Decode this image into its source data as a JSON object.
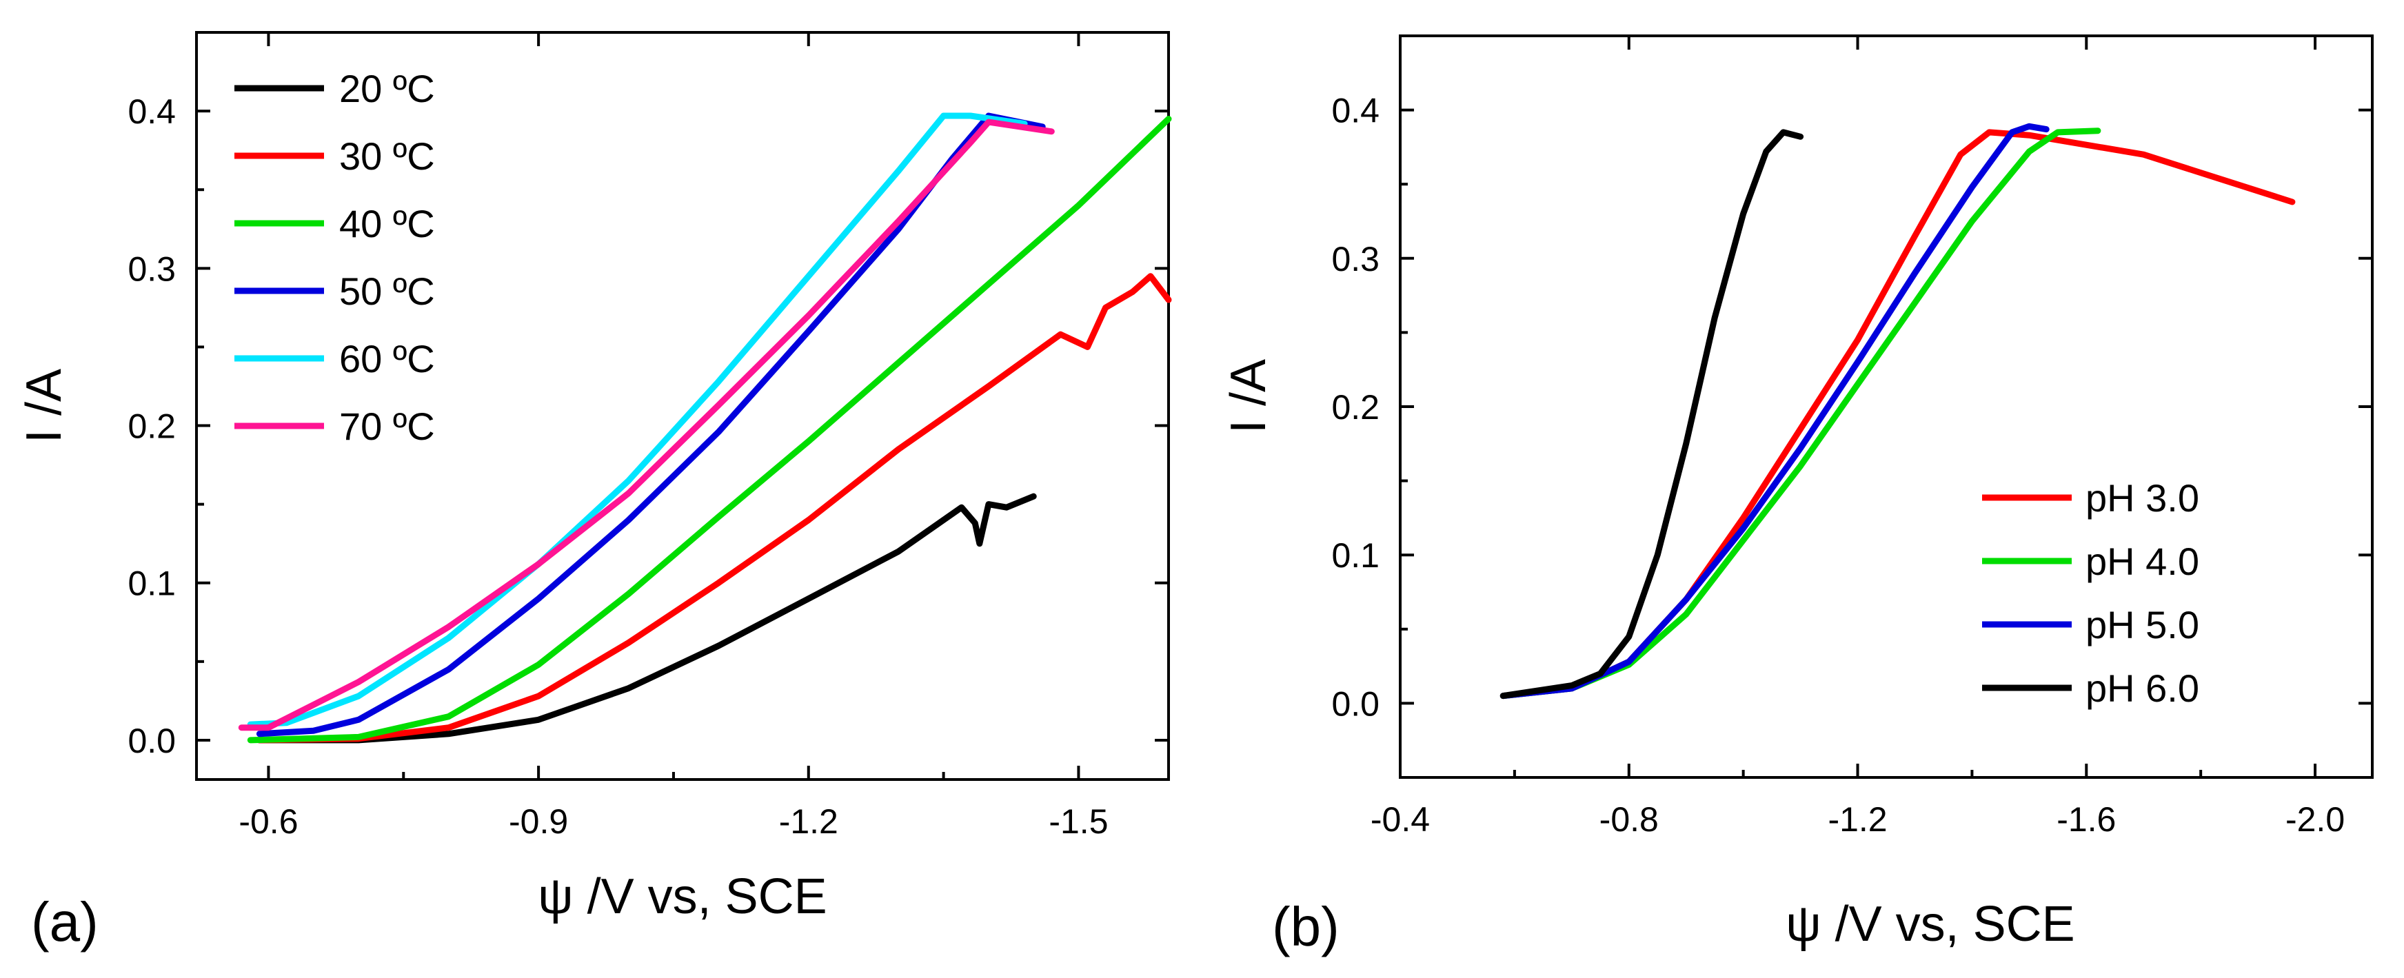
{
  "chart_data": [
    {
      "panel_label": "(a)",
      "type": "line",
      "xlabel": "ψ /V vs, SCE",
      "ylabel": "I /A",
      "xlim": [
        -0.52,
        -1.6
      ],
      "ylim": [
        -0.025,
        0.45
      ],
      "xticks": [
        -0.6,
        -0.9,
        -1.2,
        -1.5
      ],
      "xtick_labels": [
        "-0.6",
        "-0.9",
        "-1.2",
        "-1.5"
      ],
      "yticks": [
        0.0,
        0.1,
        0.2,
        0.3,
        0.4
      ],
      "ytick_labels": [
        "0.0",
        "0.1",
        "0.2",
        "0.3",
        "0.4"
      ],
      "legend_position": "top-left",
      "series": [
        {
          "name": "20 ºC",
          "color": "#000000",
          "points": [
            [
              -0.59,
              0.0
            ],
            [
              -0.7,
              0.0
            ],
            [
              -0.8,
              0.004
            ],
            [
              -0.9,
              0.013
            ],
            [
              -1.0,
              0.033
            ],
            [
              -1.1,
              0.06
            ],
            [
              -1.2,
              0.09
            ],
            [
              -1.3,
              0.12
            ],
            [
              -1.37,
              0.148
            ],
            [
              -1.385,
              0.138
            ],
            [
              -1.39,
              0.125
            ],
            [
              -1.4,
              0.15
            ],
            [
              -1.42,
              0.148
            ],
            [
              -1.45,
              0.155
            ]
          ]
        },
        {
          "name": "30 ºC",
          "color": "#ff0000",
          "points": [
            [
              -0.59,
              0.0
            ],
            [
              -0.7,
              0.001
            ],
            [
              -0.8,
              0.008
            ],
            [
              -0.9,
              0.028
            ],
            [
              -1.0,
              0.062
            ],
            [
              -1.1,
              0.1
            ],
            [
              -1.2,
              0.14
            ],
            [
              -1.3,
              0.185
            ],
            [
              -1.4,
              0.225
            ],
            [
              -1.48,
              0.258
            ],
            [
              -1.51,
              0.25
            ],
            [
              -1.53,
              0.275
            ],
            [
              -1.56,
              0.285
            ],
            [
              -1.58,
              0.295
            ],
            [
              -1.6,
              0.28
            ]
          ]
        },
        {
          "name": "40 ºC",
          "color": "#00dd00",
          "points": [
            [
              -0.58,
              0.0
            ],
            [
              -0.7,
              0.002
            ],
            [
              -0.8,
              0.015
            ],
            [
              -0.9,
              0.048
            ],
            [
              -1.0,
              0.093
            ],
            [
              -1.1,
              0.142
            ],
            [
              -1.2,
              0.19
            ],
            [
              -1.3,
              0.24
            ],
            [
              -1.4,
              0.29
            ],
            [
              -1.5,
              0.34
            ],
            [
              -1.6,
              0.395
            ]
          ]
        },
        {
          "name": "50 ºC",
          "color": "#0000dd",
          "points": [
            [
              -0.59,
              0.004
            ],
            [
              -0.65,
              0.006
            ],
            [
              -0.7,
              0.013
            ],
            [
              -0.8,
              0.045
            ],
            [
              -0.9,
              0.09
            ],
            [
              -1.0,
              0.14
            ],
            [
              -1.1,
              0.196
            ],
            [
              -1.2,
              0.26
            ],
            [
              -1.3,
              0.325
            ],
            [
              -1.36,
              0.37
            ],
            [
              -1.4,
              0.397
            ],
            [
              -1.46,
              0.39
            ]
          ]
        },
        {
          "name": "60 ºC",
          "color": "#00e5ff",
          "points": [
            [
              -0.58,
              0.01
            ],
            [
              -0.62,
              0.011
            ],
            [
              -0.7,
              0.028
            ],
            [
              -0.8,
              0.065
            ],
            [
              -0.9,
              0.112
            ],
            [
              -1.0,
              0.165
            ],
            [
              -1.1,
              0.228
            ],
            [
              -1.2,
              0.295
            ],
            [
              -1.3,
              0.362
            ],
            [
              -1.35,
              0.397
            ],
            [
              -1.38,
              0.397
            ],
            [
              -1.44,
              0.392
            ]
          ]
        },
        {
          "name": "70 ºC",
          "color": "#ff1493",
          "points": [
            [
              -0.57,
              0.008
            ],
            [
              -0.6,
              0.008
            ],
            [
              -0.7,
              0.037
            ],
            [
              -0.8,
              0.072
            ],
            [
              -0.9,
              0.112
            ],
            [
              -1.0,
              0.157
            ],
            [
              -1.1,
              0.213
            ],
            [
              -1.2,
              0.27
            ],
            [
              -1.3,
              0.33
            ],
            [
              -1.38,
              0.38
            ],
            [
              -1.4,
              0.393
            ],
            [
              -1.47,
              0.387
            ]
          ]
        }
      ]
    },
    {
      "panel_label": "(b)",
      "type": "line",
      "xlabel": "ψ /V vs, SCE",
      "ylabel": "I /A",
      "xlim": [
        -0.4,
        -2.1
      ],
      "ylim": [
        -0.05,
        0.45
      ],
      "xticks": [
        -0.4,
        -0.8,
        -1.2,
        -1.6,
        -2.0
      ],
      "xtick_labels": [
        "-0.4",
        "-0.8",
        "-1.2",
        "-1.6",
        "-2.0"
      ],
      "yticks": [
        0.0,
        0.1,
        0.2,
        0.3,
        0.4
      ],
      "ytick_labels": [
        "0.0",
        "0.1",
        "0.2",
        "0.3",
        "0.4"
      ],
      "legend_position": "bottom-right",
      "series": [
        {
          "name": "pH 3.0",
          "color": "#ff0000",
          "points": [
            [
              -0.58,
              0.005
            ],
            [
              -0.7,
              0.01
            ],
            [
              -0.8,
              0.028
            ],
            [
              -0.9,
              0.07
            ],
            [
              -1.0,
              0.125
            ],
            [
              -1.1,
              0.185
            ],
            [
              -1.2,
              0.245
            ],
            [
              -1.3,
              0.315
            ],
            [
              -1.38,
              0.37
            ],
            [
              -1.43,
              0.385
            ],
            [
              -1.5,
              0.383
            ],
            [
              -1.7,
              0.37
            ],
            [
              -1.96,
              0.338
            ]
          ]
        },
        {
          "name": "pH 4.0",
          "color": "#00dd00",
          "points": [
            [
              -0.58,
              0.005
            ],
            [
              -0.7,
              0.01
            ],
            [
              -0.8,
              0.026
            ],
            [
              -0.9,
              0.06
            ],
            [
              -1.0,
              0.11
            ],
            [
              -1.1,
              0.16
            ],
            [
              -1.2,
              0.215
            ],
            [
              -1.3,
              0.27
            ],
            [
              -1.4,
              0.325
            ],
            [
              -1.5,
              0.372
            ],
            [
              -1.55,
              0.385
            ],
            [
              -1.62,
              0.386
            ]
          ]
        },
        {
          "name": "pH 5.0",
          "color": "#0000dd",
          "points": [
            [
              -0.58,
              0.005
            ],
            [
              -0.7,
              0.01
            ],
            [
              -0.8,
              0.028
            ],
            [
              -0.9,
              0.07
            ],
            [
              -1.0,
              0.118
            ],
            [
              -1.1,
              0.172
            ],
            [
              -1.2,
              0.23
            ],
            [
              -1.3,
              0.29
            ],
            [
              -1.4,
              0.348
            ],
            [
              -1.47,
              0.385
            ],
            [
              -1.5,
              0.389
            ],
            [
              -1.53,
              0.387
            ]
          ]
        },
        {
          "name": "pH 6.0",
          "color": "#000000",
          "points": [
            [
              -0.58,
              0.005
            ],
            [
              -0.7,
              0.012
            ],
            [
              -0.75,
              0.02
            ],
            [
              -0.8,
              0.045
            ],
            [
              -0.85,
              0.1
            ],
            [
              -0.9,
              0.175
            ],
            [
              -0.95,
              0.26
            ],
            [
              -1.0,
              0.33
            ],
            [
              -1.04,
              0.372
            ],
            [
              -1.07,
              0.385
            ],
            [
              -1.1,
              0.382
            ]
          ]
        }
      ]
    }
  ]
}
